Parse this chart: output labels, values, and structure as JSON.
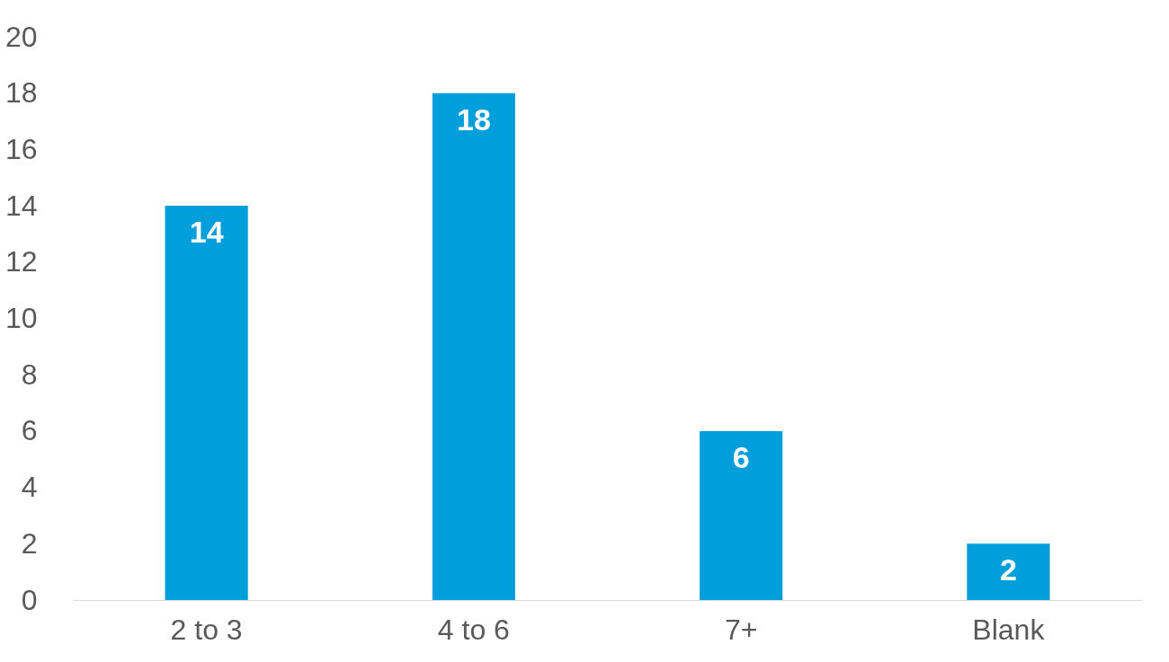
{
  "chart_data": {
    "type": "bar",
    "categories": [
      "2 to 3",
      "4 to 6",
      "7+",
      "Blank"
    ],
    "values": [
      14,
      18,
      6,
      2
    ],
    "color": "#009fdb",
    "ylim": [
      0,
      20
    ],
    "yticks": [
      0,
      2,
      4,
      6,
      8,
      10,
      12,
      14,
      16,
      18,
      20
    ],
    "data_labels": true
  }
}
